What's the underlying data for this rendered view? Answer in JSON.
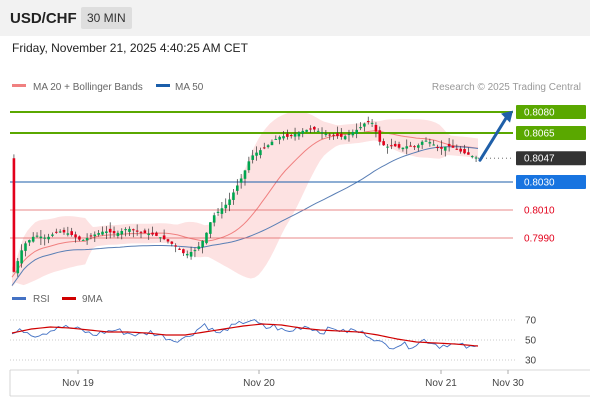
{
  "header": {
    "symbol": "USD/CHF",
    "timeframe": "30 MIN"
  },
  "timestamp": "Friday, November 21, 2025 4:40:25 AM CET",
  "copyright": "Research © 2025 Trading Central",
  "colors": {
    "bull": "#00a650",
    "bear": "#e3001b",
    "resistance": "#5aa800",
    "support_line": "#1b5eaa",
    "support_label": "#1874e0",
    "ma20": "#f08080",
    "bollinger_fill": "#fde2e2",
    "ma50": "#5a7fb5",
    "rsi": "#4472c4",
    "rsi_ma": "#d00000",
    "arrow": "#1f5fa8"
  },
  "chart_data": [
    {
      "type": "candlestick",
      "legend": [
        {
          "name": "MA 20 + Bollinger Bands",
          "color": "#f08080"
        },
        {
          "name": "MA 50",
          "color": "#1b5eaa"
        }
      ],
      "x_ticks": [
        "Nov 19",
        "Nov 20",
        "Nov 21",
        "Nov 30"
      ],
      "y_range": [
        0.796,
        0.809
      ],
      "levels": [
        {
          "value": 0.808,
          "label": "0.8080",
          "kind": "resistance"
        },
        {
          "value": 0.8065,
          "label": "0.8065",
          "kind": "resistance"
        },
        {
          "value": 0.8047,
          "label": "0.8047",
          "kind": "current"
        },
        {
          "value": 0.803,
          "label": "0.8030",
          "kind": "pivot"
        },
        {
          "value": 0.801,
          "label": "0.8010",
          "kind": "support"
        },
        {
          "value": 0.799,
          "label": "0.7990",
          "kind": "support"
        }
      ],
      "last_price": 0.8047,
      "close_path": [
        [
          0,
          0.7962
        ],
        [
          6,
          0.7985
        ],
        [
          12,
          0.7992
        ],
        [
          18,
          0.799
        ],
        [
          24,
          0.7995
        ],
        [
          30,
          0.7993
        ],
        [
          36,
          0.7988
        ],
        [
          42,
          0.7992
        ],
        [
          48,
          0.7995
        ],
        [
          54,
          0.7993
        ],
        [
          60,
          0.7997
        ],
        [
          66,
          0.7994
        ],
        [
          72,
          0.7993
        ],
        [
          78,
          0.799
        ],
        [
          84,
          0.7985
        ],
        [
          90,
          0.7978
        ],
        [
          96,
          0.7982
        ],
        [
          100,
          0.799
        ],
        [
          104,
          0.8005
        ],
        [
          108,
          0.801
        ],
        [
          112,
          0.8015
        ],
        [
          116,
          0.8025
        ],
        [
          120,
          0.8035
        ],
        [
          124,
          0.8048
        ],
        [
          128,
          0.8052
        ],
        [
          132,
          0.8055
        ],
        [
          136,
          0.806
        ],
        [
          140,
          0.8063
        ],
        [
          144,
          0.8062
        ],
        [
          148,
          0.8065
        ],
        [
          152,
          0.8067
        ],
        [
          156,
          0.8068
        ],
        [
          160,
          0.8066
        ],
        [
          164,
          0.8064
        ],
        [
          168,
          0.8063
        ],
        [
          172,
          0.8062
        ],
        [
          176,
          0.8065
        ],
        [
          180,
          0.8068
        ],
        [
          184,
          0.8073
        ],
        [
          188,
          0.8072
        ],
        [
          190,
          0.806
        ],
        [
          194,
          0.8055
        ],
        [
          198,
          0.8056
        ],
        [
          202,
          0.8054
        ],
        [
          206,
          0.8056
        ],
        [
          210,
          0.8055
        ],
        [
          214,
          0.806
        ],
        [
          218,
          0.8058
        ],
        [
          222,
          0.8053
        ],
        [
          226,
          0.8056
        ],
        [
          230,
          0.8054
        ],
        [
          234,
          0.8051
        ],
        [
          238,
          0.8049
        ],
        [
          242,
          0.8047
        ]
      ]
    },
    {
      "type": "line",
      "legend": [
        {
          "name": "RSI",
          "color": "#4472c4"
        },
        {
          "name": "9MA",
          "color": "#d00000"
        }
      ],
      "y_range": [
        20,
        80
      ],
      "y_ticks": [
        70,
        50,
        30
      ],
      "rsi_path": [
        [
          0,
          56
        ],
        [
          6,
          60
        ],
        [
          12,
          55
        ],
        [
          18,
          58
        ],
        [
          24,
          64
        ],
        [
          30,
          62
        ],
        [
          36,
          60
        ],
        [
          42,
          55
        ],
        [
          48,
          58
        ],
        [
          54,
          60
        ],
        [
          60,
          57
        ],
        [
          66,
          55
        ],
        [
          72,
          58
        ],
        [
          78,
          54
        ],
        [
          84,
          50
        ],
        [
          90,
          52
        ],
        [
          96,
          60
        ],
        [
          100,
          66
        ],
        [
          104,
          60
        ],
        [
          108,
          56
        ],
        [
          112,
          62
        ],
        [
          116,
          64
        ],
        [
          120,
          68
        ],
        [
          124,
          70
        ],
        [
          128,
          66
        ],
        [
          132,
          62
        ],
        [
          136,
          64
        ],
        [
          140,
          60
        ],
        [
          144,
          58
        ],
        [
          148,
          62
        ],
        [
          152,
          64
        ],
        [
          156,
          62
        ],
        [
          160,
          58
        ],
        [
          164,
          60
        ],
        [
          168,
          62
        ],
        [
          172,
          58
        ],
        [
          176,
          60
        ],
        [
          180,
          58
        ],
        [
          184,
          56
        ],
        [
          188,
          52
        ],
        [
          190,
          48
        ],
        [
          194,
          45
        ],
        [
          198,
          44
        ],
        [
          202,
          46
        ],
        [
          206,
          44
        ],
        [
          210,
          46
        ],
        [
          214,
          50
        ],
        [
          218,
          48
        ],
        [
          222,
          44
        ],
        [
          226,
          46
        ],
        [
          230,
          45
        ],
        [
          234,
          44
        ],
        [
          238,
          42
        ],
        [
          242,
          43
        ]
      ],
      "ma_path": [
        [
          0,
          57
        ],
        [
          10,
          61
        ],
        [
          20,
          63
        ],
        [
          30,
          62
        ],
        [
          40,
          60
        ],
        [
          50,
          58
        ],
        [
          60,
          58
        ],
        [
          70,
          57
        ],
        [
          80,
          55
        ],
        [
          90,
          55
        ],
        [
          100,
          58
        ],
        [
          110,
          61
        ],
        [
          120,
          64
        ],
        [
          130,
          66
        ],
        [
          140,
          65
        ],
        [
          150,
          62
        ],
        [
          160,
          60
        ],
        [
          170,
          59
        ],
        [
          180,
          58
        ],
        [
          190,
          55
        ],
        [
          200,
          51
        ],
        [
          210,
          48
        ],
        [
          220,
          47
        ],
        [
          230,
          46
        ],
        [
          242,
          44
        ]
      ]
    }
  ]
}
